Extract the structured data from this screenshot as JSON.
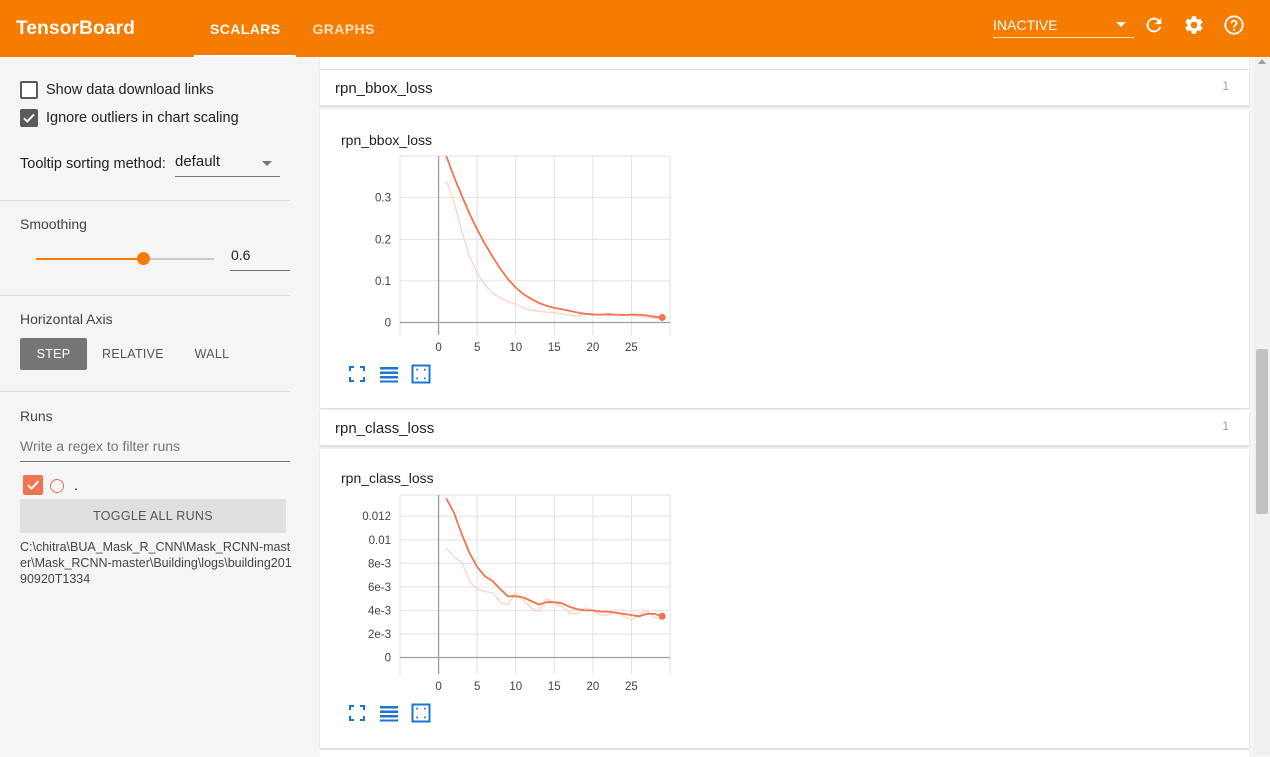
{
  "app": {
    "title": "TensorBoard",
    "tabs": [
      {
        "label": "SCALARS"
      },
      {
        "label": "GRAPHS"
      }
    ],
    "status": "INACTIVE",
    "icons": [
      "refresh-icon",
      "settings-icon",
      "help-icon"
    ],
    "accent": "#f57c00"
  },
  "sidebar": {
    "show_download_links": "Show data download links",
    "ignore_outliers": "Ignore outliers in chart scaling",
    "tooltip_label": "Tooltip sorting method:",
    "tooltip_value": "default",
    "smoothing_label": "Smoothing",
    "smoothing_value": "0.6",
    "smoothing_level": 0.6,
    "haxis_label": "Horizontal Axis",
    "haxis_options": [
      "STEP",
      "RELATIVE",
      "WALL"
    ],
    "haxis_selected": "STEP",
    "runs_label": "Runs",
    "runs_placeholder": "Write a regex to filter runs",
    "run_name": ".",
    "toggle_all": "TOGGLE ALL RUNS",
    "run_path": "C:\\chitra\\BUA_Mask_R_CNN\\Mask_RCNN-master\\Mask_RCNN-master\\Building\\logs\\building20190920T1334"
  },
  "cards": [
    {
      "name": "rpn_bbox_loss",
      "count": "1"
    },
    {
      "name": "rpn_class_loss",
      "count": "1"
    }
  ],
  "chart_data": [
    {
      "type": "line",
      "title": "rpn_bbox_loss",
      "x_ticks": [
        "0",
        "5",
        "10",
        "15",
        "20",
        "25"
      ],
      "y_ticks": [
        "0",
        "0.1",
        "0.2",
        "0.3"
      ],
      "xlim": [
        -5,
        30
      ],
      "ylim": [
        -0.03,
        0.4
      ],
      "grid": true,
      "series": [
        {
          "kind": "smoothed",
          "color": "#f0744f",
          "x": [
            1,
            2,
            3,
            4,
            5,
            6,
            7,
            8,
            9,
            10,
            11,
            12,
            13,
            14,
            15,
            16,
            17,
            18,
            19,
            20,
            21,
            22,
            23,
            24,
            25,
            26,
            27,
            28,
            29
          ],
          "y": [
            0.4,
            0.35,
            0.305,
            0.262,
            0.224,
            0.189,
            0.158,
            0.129,
            0.104,
            0.084,
            0.068,
            0.057,
            0.047,
            0.04,
            0.035,
            0.032,
            0.028,
            0.024,
            0.021,
            0.019,
            0.019,
            0.02,
            0.019,
            0.018,
            0.019,
            0.019,
            0.017,
            0.014,
            0.012
          ]
        },
        {
          "kind": "raw",
          "color": "#fbd3c2",
          "x": [
            1,
            2,
            3,
            4,
            5,
            6,
            7,
            8,
            9,
            10,
            11,
            12,
            13,
            14,
            15,
            16,
            17,
            18,
            19,
            20,
            21,
            22,
            23,
            24,
            25,
            26,
            27,
            28,
            29
          ],
          "y": [
            0.34,
            0.29,
            0.22,
            0.16,
            0.12,
            0.09,
            0.07,
            0.06,
            0.05,
            0.045,
            0.035,
            0.03,
            0.027,
            0.025,
            0.024,
            0.02,
            0.018,
            0.015,
            0.02,
            0.022,
            0.018,
            0.016,
            0.018,
            0.02,
            0.017,
            0.015,
            0.012,
            0.01,
            0.01
          ]
        }
      ]
    },
    {
      "type": "line",
      "title": "rpn_class_loss",
      "x_ticks": [
        "0",
        "5",
        "10",
        "15",
        "20",
        "25"
      ],
      "y_ticks": [
        "0",
        "2e-3",
        "4e-3",
        "6e-3",
        "8e-3",
        "0.01",
        "0.012"
      ],
      "xlim": [
        -5,
        30
      ],
      "ylim": [
        -0.0014,
        0.0138
      ],
      "grid": true,
      "series": [
        {
          "kind": "smoothed",
          "color": "#f0744f",
          "x": [
            1,
            2,
            3,
            4,
            5,
            6,
            7,
            8,
            9,
            10,
            11,
            12,
            13,
            14,
            15,
            16,
            17,
            18,
            19,
            20,
            21,
            22,
            23,
            24,
            25,
            26,
            27,
            28,
            29
          ],
          "y": [
            0.0135,
            0.0123,
            0.0105,
            0.0089,
            0.0077,
            0.0069,
            0.0065,
            0.0058,
            0.0052,
            0.0052,
            0.0051,
            0.0048,
            0.0045,
            0.0047,
            0.0047,
            0.0046,
            0.0043,
            0.0041,
            0.004,
            0.004,
            0.0039,
            0.0039,
            0.0038,
            0.0037,
            0.0036,
            0.0035,
            0.0037,
            0.0037,
            0.0035
          ]
        },
        {
          "kind": "raw",
          "color": "#fbd3c2",
          "x": [
            1,
            2,
            3,
            4,
            5,
            6,
            7,
            8,
            9,
            10,
            11,
            12,
            13,
            14,
            15,
            16,
            17,
            18,
            19,
            20,
            21,
            22,
            23,
            24,
            25,
            26,
            27,
            28,
            29
          ],
          "y": [
            0.0093,
            0.0085,
            0.0081,
            0.0065,
            0.0058,
            0.0056,
            0.0055,
            0.0047,
            0.0045,
            0.0055,
            0.0049,
            0.0042,
            0.0039,
            0.005,
            0.0046,
            0.0043,
            0.0038,
            0.0037,
            0.0042,
            0.004,
            0.0036,
            0.0036,
            0.0039,
            0.0035,
            0.0032,
            0.0036,
            0.004,
            0.0034,
            0.0033
          ]
        }
      ]
    }
  ]
}
